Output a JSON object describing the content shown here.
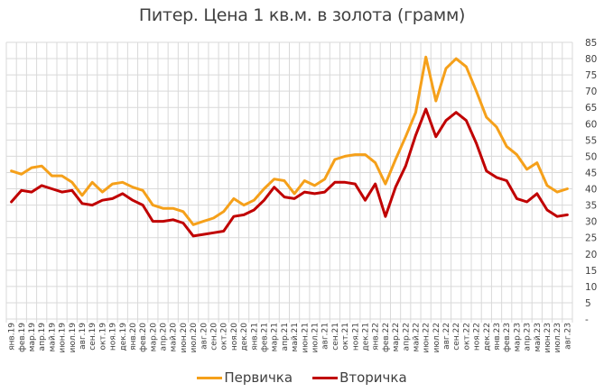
{
  "chart_data": {
    "type": "line",
    "title": "Питер. Цена 1 кв.м. в золота (грамм)",
    "xlabel": "",
    "ylabel": "",
    "ylim": [
      0,
      85
    ],
    "ytick_step": 5,
    "ytick_labels": [
      "-",
      "5",
      "10",
      "15",
      "20",
      "25",
      "30",
      "35",
      "40",
      "45",
      "50",
      "55",
      "60",
      "65",
      "70",
      "75",
      "80",
      "85"
    ],
    "y_axis_position": "right",
    "grid": true,
    "legend_position": "bottom",
    "categories": [
      "янв.19",
      "фев.19",
      "мар.19",
      "апр.19",
      "май.19",
      "июн.19",
      "июл.19",
      "авг.19",
      "сен.19",
      "окт.19",
      "ноя.19",
      "дек.19",
      "янв.20",
      "фев.20",
      "мар.20",
      "апр.20",
      "май.20",
      "июн.20",
      "июл.20",
      "авг.20",
      "сен.20",
      "окт.20",
      "ноя.20",
      "дек.20",
      "янв.21",
      "фев.21",
      "мар.21",
      "апр.21",
      "май.21",
      "июн.21",
      "июл.21",
      "авг.21",
      "сен.21",
      "окт.21",
      "ноя.21",
      "дек.21",
      "янв.22",
      "фев.22",
      "мар.22",
      "апр.22",
      "май.22",
      "июн.22",
      "июл.22",
      "авг.22",
      "сен.22",
      "окт.22",
      "ноя.22",
      "дек.22",
      "янв.23",
      "фев.23",
      "мар.23",
      "апр.23",
      "май.23",
      "июн.23",
      "июл.23",
      "авг.23"
    ],
    "series": [
      {
        "name": "Первичка",
        "color": "#F5A01A",
        "values": [
          45.5,
          44.5,
          46.5,
          47,
          44,
          44,
          42,
          38,
          42,
          39,
          41.5,
          42,
          40.5,
          39.5,
          35,
          34,
          34,
          33,
          29,
          30,
          31,
          33,
          37,
          35,
          36.5,
          40,
          43,
          42.5,
          38.5,
          42.5,
          41,
          43,
          49,
          50,
          50.5,
          50.5,
          48,
          41.5,
          49,
          56,
          63.5,
          80.5,
          67,
          77,
          80,
          77.5,
          70,
          62,
          59,
          53,
          50.5,
          46,
          48,
          41,
          39,
          40
        ]
      },
      {
        "name": "Вторичка",
        "color": "#C00000",
        "values": [
          36,
          39.5,
          39,
          41,
          40,
          39,
          39.5,
          35.5,
          35,
          36.5,
          37,
          38.5,
          36.5,
          35,
          30,
          30,
          30.5,
          29.5,
          25.5,
          26,
          26.5,
          27,
          31.5,
          32,
          33.5,
          36.5,
          40.5,
          37.5,
          37,
          39,
          38.5,
          39,
          42,
          42,
          41.5,
          36.5,
          41.5,
          31.5,
          40.5,
          47,
          56.5,
          64.5,
          56,
          61,
          63.5,
          61,
          54,
          45.5,
          43.5,
          42.5,
          37,
          36,
          38.5,
          33.5,
          31.5,
          32
        ]
      }
    ]
  },
  "legend": {
    "items": [
      {
        "label": "Первичка",
        "color": "#F5A01A"
      },
      {
        "label": "Вторичка",
        "color": "#C00000"
      }
    ]
  },
  "colors": {
    "grid": "#D9D9D9",
    "text": "#404040",
    "background": "#FFFFFF"
  }
}
